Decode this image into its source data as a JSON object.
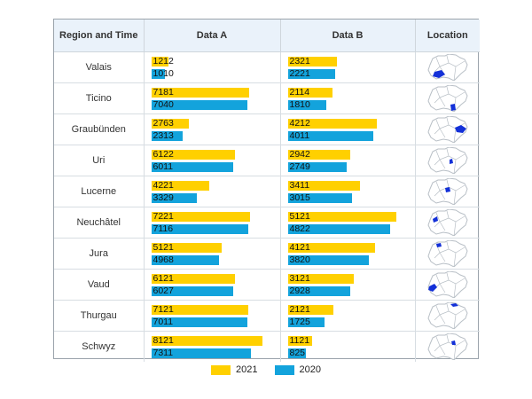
{
  "header": {
    "region": "Region and Time",
    "a": "Data A",
    "b": "Data B",
    "location": "Location"
  },
  "legend": [
    {
      "label": "2021",
      "color": "#ffd000"
    },
    {
      "label": "2020",
      "color": "#13a3dc"
    }
  ],
  "chart_data": {
    "type": "bar",
    "categories": [
      "Valais",
      "Ticino",
      "Graubünden",
      "Uri",
      "Lucerne",
      "Neuchâtel",
      "Jura",
      "Vaud",
      "Thurgau",
      "Schwyz"
    ],
    "metrics": [
      {
        "name": "Data A",
        "series": [
          {
            "name": "2021",
            "values": [
              1212,
              7181,
              2763,
              6122,
              4221,
              7221,
              5121,
              6121,
              7121,
              8121
            ]
          },
          {
            "name": "2020",
            "values": [
              1010,
              7040,
              2313,
              6011,
              3329,
              7116,
              4968,
              6027,
              7011,
              7311
            ]
          }
        ],
        "xlim": [
          0,
          9000
        ]
      },
      {
        "name": "Data B",
        "series": [
          {
            "name": "2021",
            "values": [
              2321,
              2114,
              4212,
              2942,
              3411,
              5121,
              4121,
              3121,
              2121,
              1121
            ]
          },
          {
            "name": "2020",
            "values": [
              2221,
              1810,
              4011,
              2749,
              3015,
              4822,
              3820,
              2928,
              1725,
              825
            ]
          }
        ],
        "xlim": [
          0,
          5700
        ]
      }
    ],
    "series_colors": {
      "2021": "#ffd000",
      "2020": "#13a3dc"
    },
    "grid": false,
    "legend_position": "bottom"
  },
  "map_colors": {
    "outline": "#b8bfc6",
    "fill": "#ffffff",
    "highlight": "#1330d8"
  }
}
